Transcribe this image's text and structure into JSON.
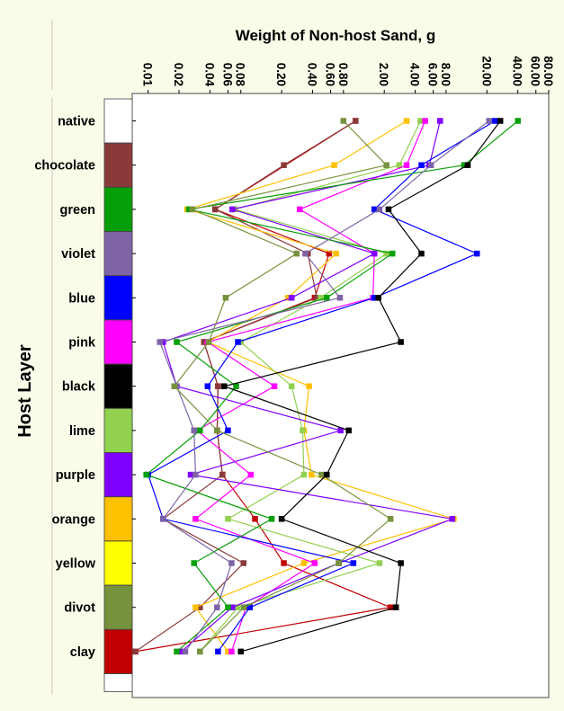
{
  "chart_data": {
    "type": "line",
    "title": "",
    "xlabel": "Weight of Non-host Sand, g",
    "ylabel": "Host Layer",
    "x_scale": "log",
    "xlim": [
      0.007,
      80
    ],
    "x_ticks": [
      "0.01",
      "0.02",
      "0.04",
      "0.06",
      "0.08",
      "0.20",
      "0.40",
      "0.60",
      "0.80",
      "2.00",
      "4.00",
      "6.00",
      "8.00",
      "20.00",
      "40.00",
      "60.00",
      "80.00"
    ],
    "categories": [
      "native",
      "chocolate",
      "green",
      "violet",
      "blue",
      "pink",
      "black",
      "lime",
      "purple",
      "orange",
      "yellow",
      "divot",
      "clay"
    ],
    "category_colors": [
      "#ffffff",
      "#8b3a3a",
      "#079f07",
      "#7e64a7",
      "#0000ff",
      "#ff00ff",
      "#000000",
      "#92d050",
      "#8000ff",
      "#ffc000",
      "#ffff00",
      "#76923c",
      "#c00000"
    ],
    "grid": false,
    "legend": "none",
    "series": [
      {
        "color": "#c00000",
        "values": [
          1.05,
          null,
          0.045,
          0.58,
          0.42,
          0.035,
          0.048,
          0.047,
          0.053,
          0.11,
          0.21,
          2.3,
          0.0075
        ]
      },
      {
        "color": "#8b3a3a",
        "values": [
          1.05,
          0.21,
          0.045,
          0.36,
          0.44,
          0.035,
          0.048,
          0.047,
          0.053,
          0.014,
          0.085,
          0.032,
          0.0075
        ]
      },
      {
        "color": "#ffc000",
        "values": [
          3.3,
          0.65,
          0.024,
          0.68,
          0.23,
          0.038,
          0.37,
          0.33,
          0.39,
          9.5,
          0.33,
          0.029,
          0.06
        ]
      },
      {
        "color": "#92d050",
        "values": [
          4.5,
          2.8,
          0.07,
          2.1,
          0.48,
          0.08,
          0.25,
          0.32,
          0.33,
          0.06,
          1.8,
          0.075,
          0.032
        ]
      },
      {
        "color": "#ff00ff",
        "values": [
          5.0,
          3.3,
          0.3,
          1.6,
          1.55,
          0.038,
          0.17,
          0.03,
          0.1,
          0.029,
          0.42,
          0.09,
          0.065
        ]
      },
      {
        "color": "#8000ff",
        "values": [
          7.0,
          5.5,
          0.066,
          1.6,
          0.25,
          0.014,
          0.019,
          0.75,
          0.026,
          9.2,
          0.72,
          0.066,
          0.021
        ]
      },
      {
        "color": "#0000ff",
        "values": [
          24.0,
          4.6,
          1.6,
          16.0,
          1.6,
          0.075,
          0.038,
          0.06,
          0.01,
          0.014,
          1.0,
          0.098,
          0.048
        ]
      },
      {
        "color": "#079f07",
        "values": [
          40.0,
          12.0,
          0.025,
          2.4,
          0.55,
          0.019,
          0.072,
          0.032,
          0.0096,
          0.16,
          0.028,
          0.06,
          0.019
        ]
      },
      {
        "color": "#7e64a7",
        "values": [
          21.0,
          5.7,
          1.8,
          0.34,
          0.74,
          0.013,
          0.019,
          0.028,
          0.029,
          0.014,
          0.065,
          0.047,
          0.023
        ]
      },
      {
        "color": "#76923c",
        "values": [
          0.8,
          2.1,
          0.027,
          0.28,
          0.057,
          0.039,
          0.018,
          0.047,
          0.49,
          2.3,
          0.72,
          0.086,
          0.032
        ]
      },
      {
        "color": "#000000",
        "values": [
          27.0,
          13.0,
          2.2,
          4.6,
          1.75,
          2.9,
          0.055,
          0.9,
          0.55,
          0.2,
          2.9,
          2.6,
          0.08
        ]
      }
    ]
  }
}
